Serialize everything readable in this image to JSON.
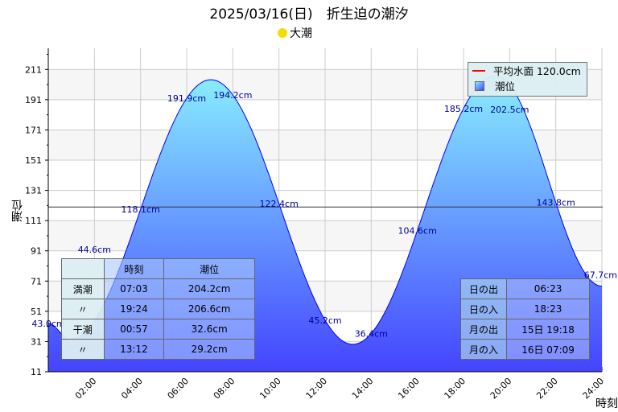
{
  "title": "2025/03/16(日)　折生迫の潮汐",
  "moon_phase": "大潮",
  "legend": {
    "mean_label": "平均水面 120.0cm",
    "tide_label": "潮位"
  },
  "tide_table": {
    "headers": [
      "",
      "時刻",
      "潮位"
    ],
    "rows": [
      [
        "満潮",
        "07:03",
        "204.2cm"
      ],
      [
        "〃",
        "19:24",
        "206.6cm"
      ],
      [
        "干潮",
        "00:57",
        "32.6cm"
      ],
      [
        "〃",
        "13:12",
        "29.2cm"
      ]
    ]
  },
  "sun_moon_table": [
    [
      "日の出",
      "06:23"
    ],
    [
      "日の入",
      "18:23"
    ],
    [
      "月の出",
      "15日 19:18"
    ],
    [
      "月の入",
      "16日 07:09"
    ]
  ],
  "chart_data": {
    "type": "area",
    "xlabel": "時刻",
    "ylabel": "潮位",
    "xlim": [
      0,
      24
    ],
    "ylim": [
      11,
      225
    ],
    "yticks": [
      11,
      31,
      51,
      71,
      91,
      111,
      131,
      151,
      171,
      191,
      211
    ],
    "xticks": [
      "02:00",
      "04:00",
      "06:00",
      "08:00",
      "10:00",
      "12:00",
      "14:00",
      "16:00",
      "18:00",
      "20:00",
      "22:00",
      "24:00"
    ],
    "mean_level": 120.0,
    "extrema": [
      {
        "t": 0,
        "v": 43.0
      },
      {
        "t": 0.95,
        "v": 32.6
      },
      {
        "t": 7.05,
        "v": 204.2
      },
      {
        "t": 13.2,
        "v": 29.2
      },
      {
        "t": 19.4,
        "v": 206.6
      },
      {
        "t": 24,
        "v": 67.7
      }
    ],
    "point_labels": [
      {
        "t": 0,
        "label": "43.0cm"
      },
      {
        "t": 2,
        "label": "44.6cm"
      },
      {
        "t": 4,
        "label": "118.1cm"
      },
      {
        "t": 6,
        "label": "191.9cm"
      },
      {
        "t": 8,
        "label": "194.2cm"
      },
      {
        "t": 10,
        "label": "122.4cm"
      },
      {
        "t": 12,
        "label": "45.2cm"
      },
      {
        "t": 14,
        "label": "36.4cm"
      },
      {
        "t": 16,
        "label": "104.6cm"
      },
      {
        "t": 18,
        "label": "185.2cm"
      },
      {
        "t": 20,
        "label": "202.5cm"
      },
      {
        "t": 22,
        "label": "143.8cm"
      },
      {
        "t": 24,
        "label": "67.7cm"
      }
    ],
    "colors": {
      "line": "#0000ff",
      "fill_top": "#88eeff",
      "fill_bottom": "#4444ff",
      "label": "#000099"
    }
  }
}
